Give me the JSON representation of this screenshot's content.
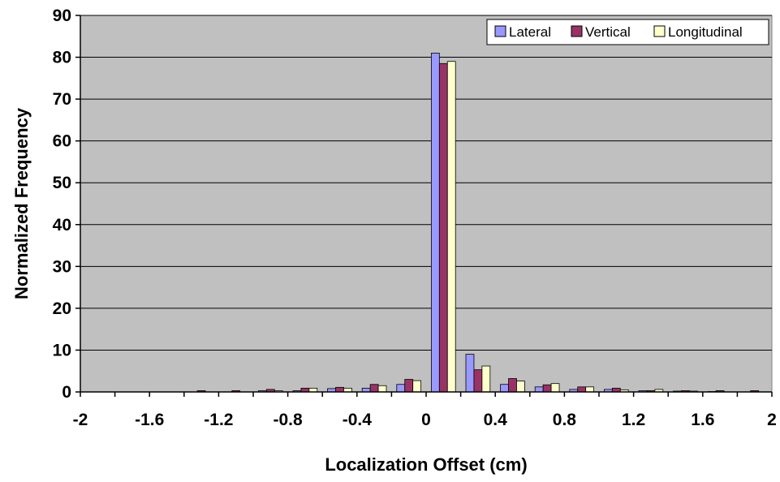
{
  "chart_data": {
    "type": "bar",
    "xlabel": "Localization Offset (cm)",
    "ylabel": "Normalized Frequency",
    "xlim": [
      -2,
      2
    ],
    "ylim": [
      0,
      90
    ],
    "x_ticks": [
      "-2",
      "-1.6",
      "-1.2",
      "-0.8",
      "-0.4",
      "0",
      "0.4",
      "0.8",
      "1.2",
      "1.6",
      "2"
    ],
    "y_ticks": [
      "0",
      "10",
      "20",
      "30",
      "40",
      "50",
      "60",
      "70",
      "80",
      "90"
    ],
    "grid": true,
    "legend_position": "top-right",
    "x": [
      -1.9,
      -1.7,
      -1.5,
      -1.3,
      -1.1,
      -0.9,
      -0.7,
      -0.5,
      -0.3,
      -0.1,
      0.1,
      0.3,
      0.5,
      0.7,
      0.9,
      1.1,
      1.3,
      1.5,
      1.7,
      1.9
    ],
    "series": [
      {
        "name": "Lateral",
        "color": "#9999ff",
        "values": [
          0,
          0,
          0,
          0,
          0,
          0.3,
          0.3,
          0.8,
          0.9,
          1.8,
          81,
          9,
          1.8,
          1.2,
          0.6,
          0.6,
          0.3,
          0.2,
          0.1,
          0
        ]
      },
      {
        "name": "Vertical",
        "color": "#993366",
        "values": [
          0,
          0,
          0,
          0.3,
          0.3,
          0.6,
          0.9,
          1.1,
          1.8,
          3,
          78.5,
          5.3,
          3.2,
          1.7,
          1.2,
          0.9,
          0.3,
          0.3,
          0.3,
          0.3
        ]
      },
      {
        "name": "Longitudinal",
        "color": "#ffffcc",
        "values": [
          0,
          0,
          0,
          0,
          0,
          0.3,
          0.9,
          0.9,
          1.5,
          2.7,
          79,
          6.2,
          2.6,
          2,
          1.2,
          0.5,
          0.6,
          0.2,
          0,
          0
        ]
      }
    ]
  }
}
